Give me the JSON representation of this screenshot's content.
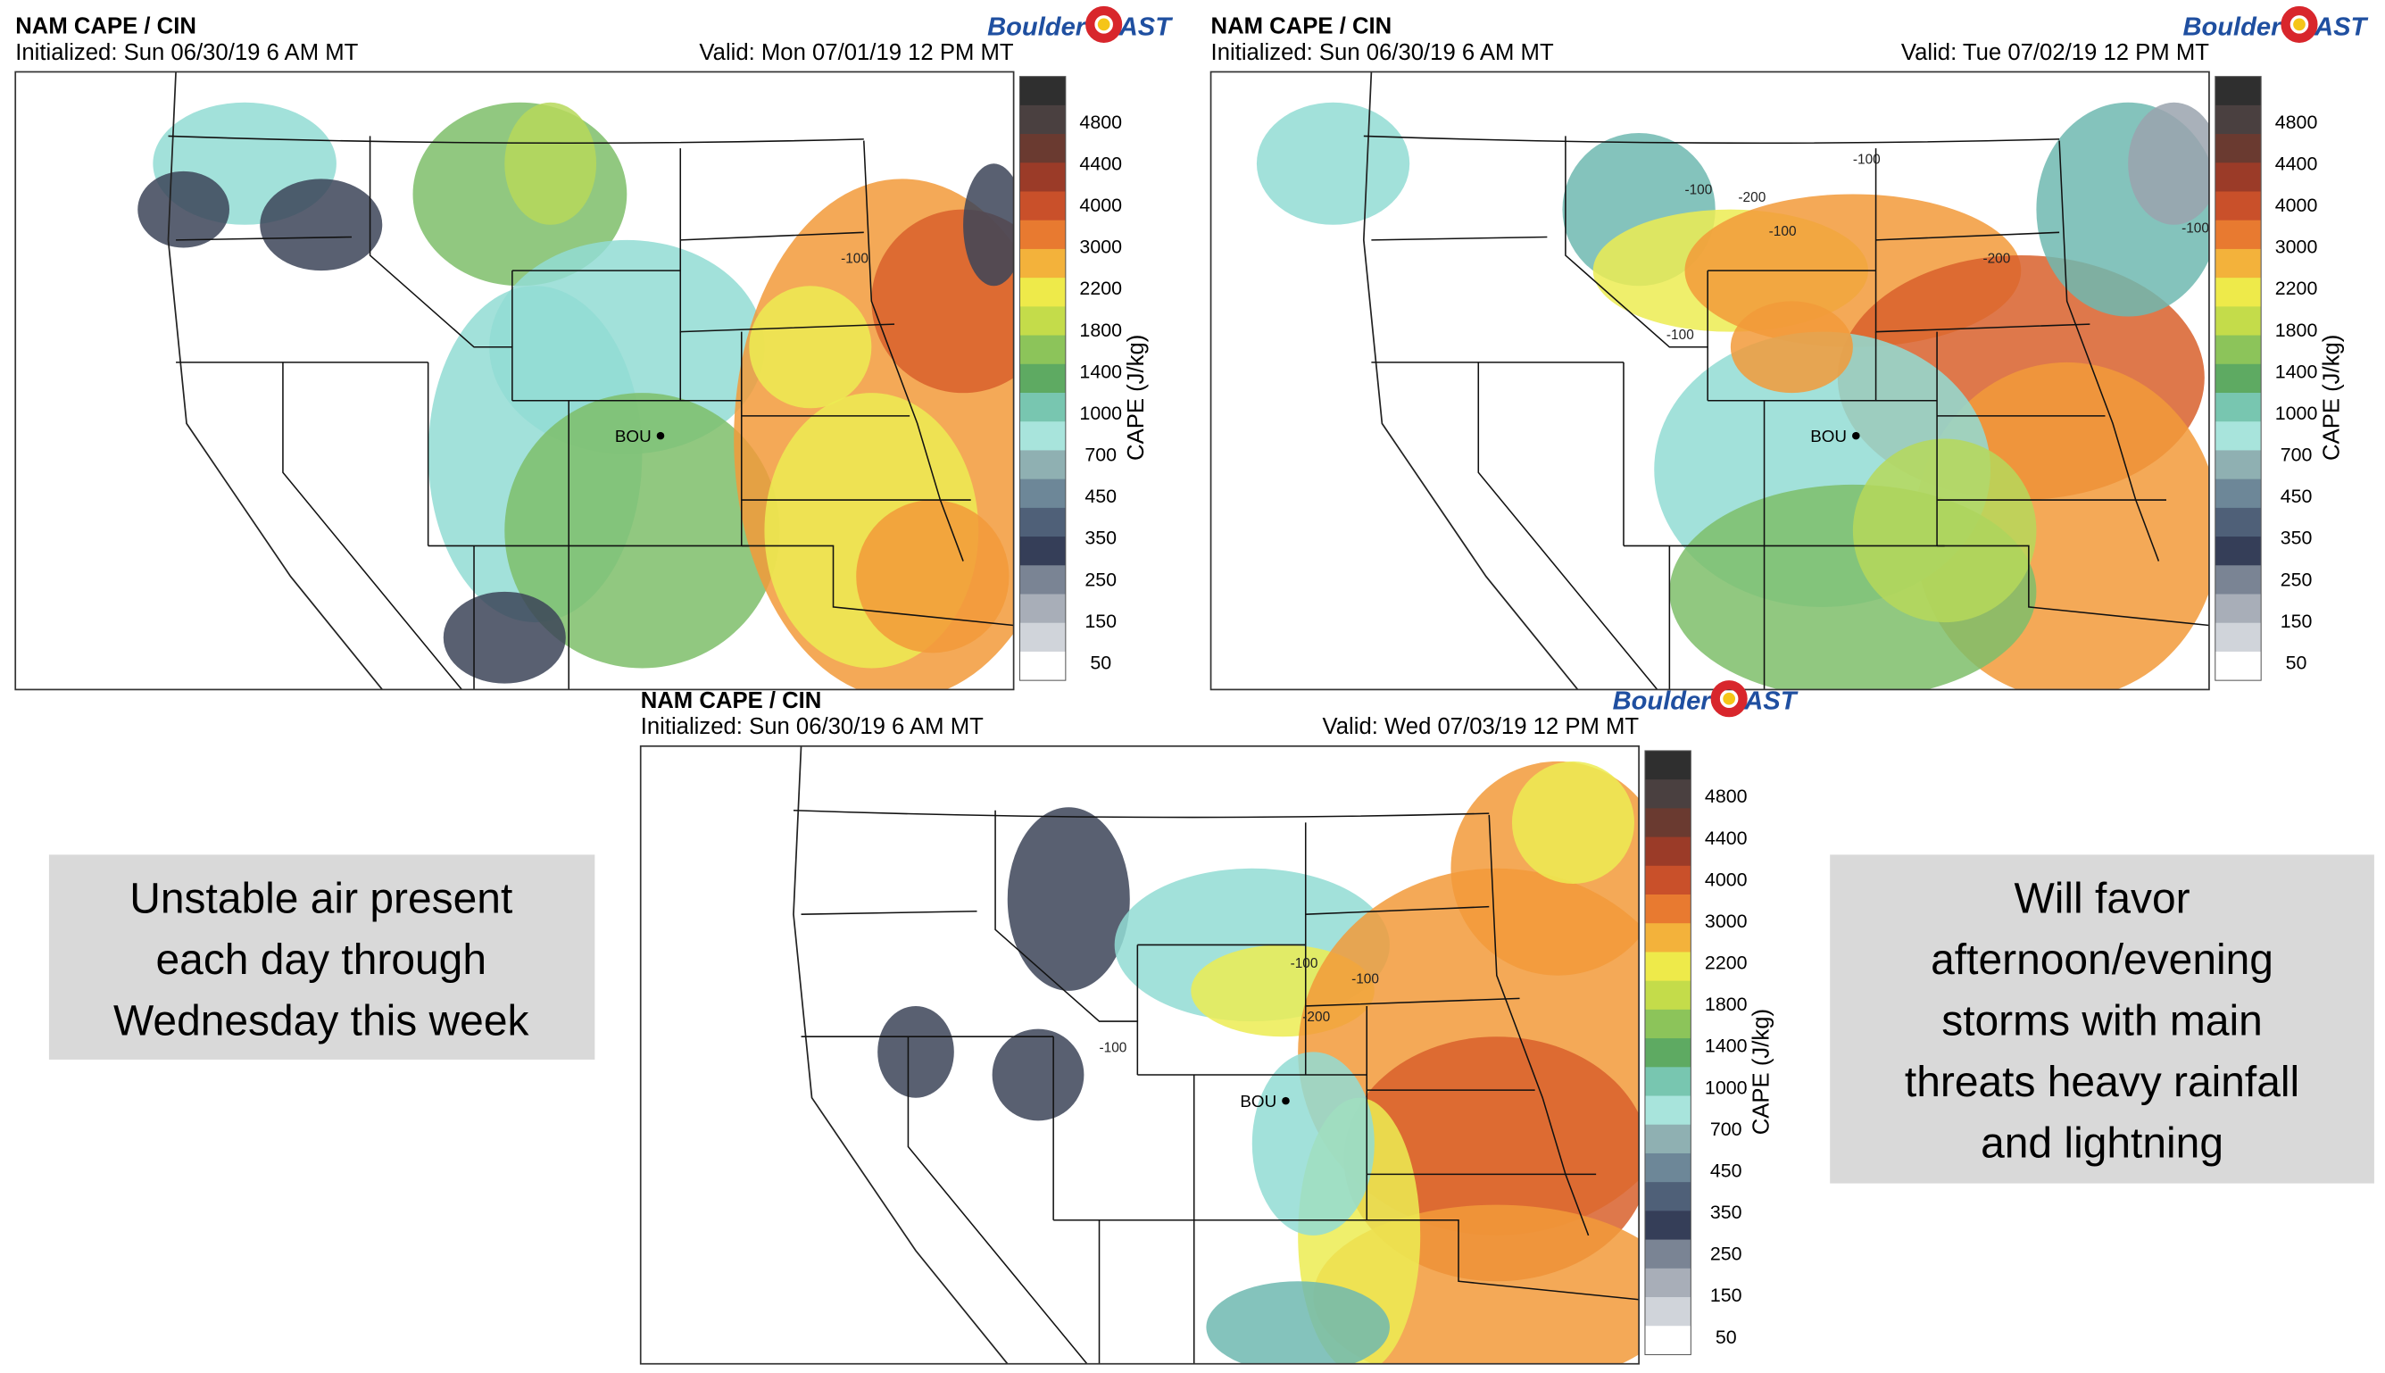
{
  "panels": [
    {
      "title": "NAM CAPE / CIN",
      "initialized": "Initialized: Sun 06/30/19 6 AM MT",
      "valid": "Valid: Mon 07/01/19 12 PM MT",
      "logo": {
        "left": "Boulder",
        "right": "AST"
      },
      "station": "BOU",
      "contour_labels": [
        "-100"
      ],
      "colorbar": {
        "label": "CAPE (J/kg)",
        "ticks": [
          4800,
          4400,
          4000,
          3000,
          2200,
          1800,
          1400,
          1000,
          700,
          450,
          350,
          250,
          150,
          50
        ]
      }
    },
    {
      "title": "NAM CAPE / CIN",
      "initialized": "Initialized: Sun 06/30/19 6 AM MT",
      "valid": "Valid: Tue 07/02/19 12 PM MT",
      "logo": {
        "left": "Boulder",
        "right": "AST"
      },
      "station": "BOU",
      "contour_labels": [
        "-100",
        "-200",
        "-100",
        "-100",
        "-200",
        "-100",
        "-100"
      ],
      "colorbar": {
        "label": "CAPE (J/kg)",
        "ticks": [
          4800,
          4400,
          4000,
          3000,
          2200,
          1800,
          1400,
          1000,
          700,
          450,
          350,
          250,
          150,
          50
        ]
      }
    },
    {
      "title": "NAM CAPE / CIN",
      "initialized": "Initialized: Sun 06/30/19 6 AM MT",
      "valid": "Valid: Wed 07/03/19 12 PM MT",
      "logo": {
        "left": "Boulder",
        "right": "AST"
      },
      "station": "BOU",
      "contour_labels": [
        "-100",
        "-200",
        "-100",
        "-100"
      ],
      "colorbar": {
        "label": "CAPE (J/kg)",
        "ticks": [
          4800,
          4400,
          4000,
          3000,
          2200,
          1800,
          1400,
          1000,
          700,
          450,
          350,
          250,
          150,
          50
        ]
      }
    }
  ],
  "notes": [
    {
      "lines": [
        "Unstable air present",
        "each day through",
        "Wednesday this week"
      ]
    },
    {
      "lines": [
        "Will favor",
        "afternoon/evening",
        "storms with main",
        "threats heavy rainfall",
        "and lightning"
      ]
    }
  ]
}
